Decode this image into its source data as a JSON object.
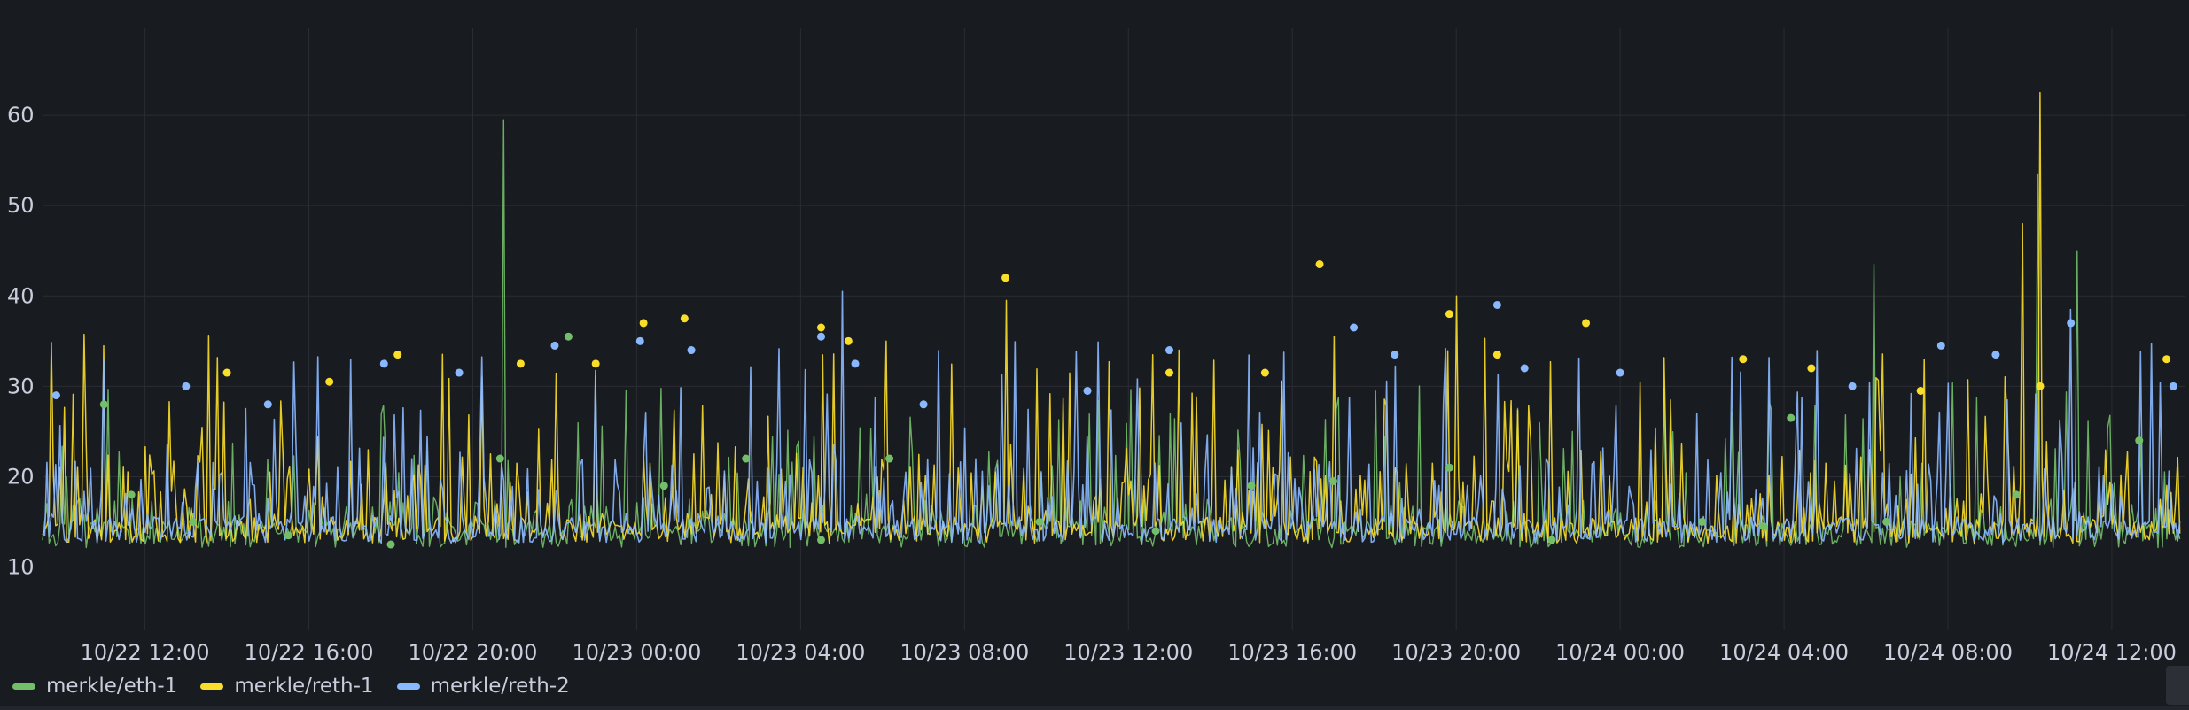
{
  "chart_data": {
    "type": "line",
    "title": "",
    "xlabel": "",
    "ylabel": "",
    "ylim": [
      3,
      70
    ],
    "grid": true,
    "legend_position": "bottom-left",
    "time_range": [
      "10/22 09:30",
      "10/24 13:40"
    ],
    "y_ticks": [
      10,
      20,
      30,
      40,
      50,
      60
    ],
    "x_ticks": [
      "10/22 12:00",
      "10/22 16:00",
      "10/22 20:00",
      "10/23 00:00",
      "10/23 04:00",
      "10/23 08:00",
      "10/23 12:00",
      "10/23 16:00",
      "10/23 20:00",
      "10/24 00:00",
      "10/24 04:00",
      "10/24 08:00",
      "10/24 12:00"
    ],
    "series": [
      {
        "name": "merkle/eth-1",
        "color": "#73bf69",
        "baseline": 13.5,
        "spikes": [
          {
            "time": "10/22 20:45",
            "value": 59.5
          },
          {
            "time": "10/24 06:10",
            "value": 43.5
          },
          {
            "time": "10/24 10:10",
            "value": 53.5
          },
          {
            "time": "10/24 11:10",
            "value": 45.0
          }
        ],
        "points": [
          {
            "time": "10/22 11:00",
            "value": 28.0
          },
          {
            "time": "10/22 11:40",
            "value": 18.0
          },
          {
            "time": "10/22 13:10",
            "value": 15.0
          },
          {
            "time": "10/22 15:30",
            "value": 13.5
          },
          {
            "time": "10/22 18:00",
            "value": 12.5
          },
          {
            "time": "10/22 20:40",
            "value": 22.0
          },
          {
            "time": "10/22 22:20",
            "value": 35.5
          },
          {
            "time": "10/23 00:40",
            "value": 19.0
          },
          {
            "time": "10/23 02:40",
            "value": 22.0
          },
          {
            "time": "10/23 04:30",
            "value": 13.0
          },
          {
            "time": "10/23 06:10",
            "value": 22.0
          },
          {
            "time": "10/23 09:50",
            "value": 15.0
          },
          {
            "time": "10/23 12:40",
            "value": 14.0
          },
          {
            "time": "10/23 15:00",
            "value": 19.0
          },
          {
            "time": "10/23 17:00",
            "value": 19.5
          },
          {
            "time": "10/23 19:50",
            "value": 21.0
          },
          {
            "time": "10/23 22:20",
            "value": 13.0
          },
          {
            "time": "10/24 02:00",
            "value": 15.0
          },
          {
            "time": "10/24 03:30",
            "value": 14.5
          },
          {
            "time": "10/24 04:10",
            "value": 26.5
          },
          {
            "time": "10/24 06:30",
            "value": 15.0
          },
          {
            "time": "10/24 09:40",
            "value": 18.0
          },
          {
            "time": "10/24 12:40",
            "value": 24.0
          }
        ]
      },
      {
        "name": "merkle/reth-1",
        "color": "#fade2a",
        "baseline": 14.0,
        "spikes": [
          {
            "time": "10/23 09:00",
            "value": 39.5
          },
          {
            "time": "10/23 20:00",
            "value": 40.0
          },
          {
            "time": "10/24 09:50",
            "value": 48.0
          },
          {
            "time": "10/24 10:15",
            "value": 62.5
          }
        ],
        "points": [
          {
            "time": "10/22 14:00",
            "value": 31.5
          },
          {
            "time": "10/22 16:30",
            "value": 30.5
          },
          {
            "time": "10/22 18:10",
            "value": 33.5
          },
          {
            "time": "10/22 21:10",
            "value": 32.5
          },
          {
            "time": "10/22 23:00",
            "value": 32.5
          },
          {
            "time": "10/23 00:10",
            "value": 37.0
          },
          {
            "time": "10/23 01:10",
            "value": 37.5
          },
          {
            "time": "10/23 04:30",
            "value": 36.5
          },
          {
            "time": "10/23 05:10",
            "value": 35.0
          },
          {
            "time": "10/23 09:00",
            "value": 42.0
          },
          {
            "time": "10/23 13:00",
            "value": 31.5
          },
          {
            "time": "10/23 15:20",
            "value": 31.5
          },
          {
            "time": "10/23 16:40",
            "value": 43.5
          },
          {
            "time": "10/23 19:50",
            "value": 38.0
          },
          {
            "time": "10/23 21:00",
            "value": 33.5
          },
          {
            "time": "10/23 23:10",
            "value": 37.0
          },
          {
            "time": "10/24 03:00",
            "value": 33.0
          },
          {
            "time": "10/24 04:40",
            "value": 32.0
          },
          {
            "time": "10/24 07:20",
            "value": 29.5
          },
          {
            "time": "10/24 10:15",
            "value": 30.0
          },
          {
            "time": "10/24 13:20",
            "value": 33.0
          }
        ]
      },
      {
        "name": "merkle/reth-2",
        "color": "#8ab8ff",
        "baseline": 14.0,
        "spikes": [
          {
            "time": "10/22 11:00",
            "value": 33.0
          },
          {
            "time": "10/23 05:00",
            "value": 40.5
          },
          {
            "time": "10/24 11:00",
            "value": 38.5
          }
        ],
        "points": [
          {
            "time": "10/22 09:50",
            "value": 29.0
          },
          {
            "time": "10/22 13:00",
            "value": 30.0
          },
          {
            "time": "10/22 15:00",
            "value": 28.0
          },
          {
            "time": "10/22 17:50",
            "value": 32.5
          },
          {
            "time": "10/22 19:40",
            "value": 31.5
          },
          {
            "time": "10/22 22:00",
            "value": 34.5
          },
          {
            "time": "10/23 00:05",
            "value": 35.0
          },
          {
            "time": "10/23 01:20",
            "value": 34.0
          },
          {
            "time": "10/23 04:30",
            "value": 35.5
          },
          {
            "time": "10/23 05:20",
            "value": 32.5
          },
          {
            "time": "10/23 07:00",
            "value": 28.0
          },
          {
            "time": "10/23 11:00",
            "value": 29.5
          },
          {
            "time": "10/23 13:00",
            "value": 34.0
          },
          {
            "time": "10/23 17:30",
            "value": 36.5
          },
          {
            "time": "10/23 18:30",
            "value": 33.5
          },
          {
            "time": "10/23 21:00",
            "value": 39.0
          },
          {
            "time": "10/23 21:40",
            "value": 32.0
          },
          {
            "time": "10/24 00:00",
            "value": 31.5
          },
          {
            "time": "10/24 05:40",
            "value": 30.0
          },
          {
            "time": "10/24 07:50",
            "value": 34.5
          },
          {
            "time": "10/24 09:10",
            "value": 33.5
          },
          {
            "time": "10/24 11:00",
            "value": 37.0
          },
          {
            "time": "10/24 13:30",
            "value": 30.0
          }
        ]
      }
    ]
  }
}
